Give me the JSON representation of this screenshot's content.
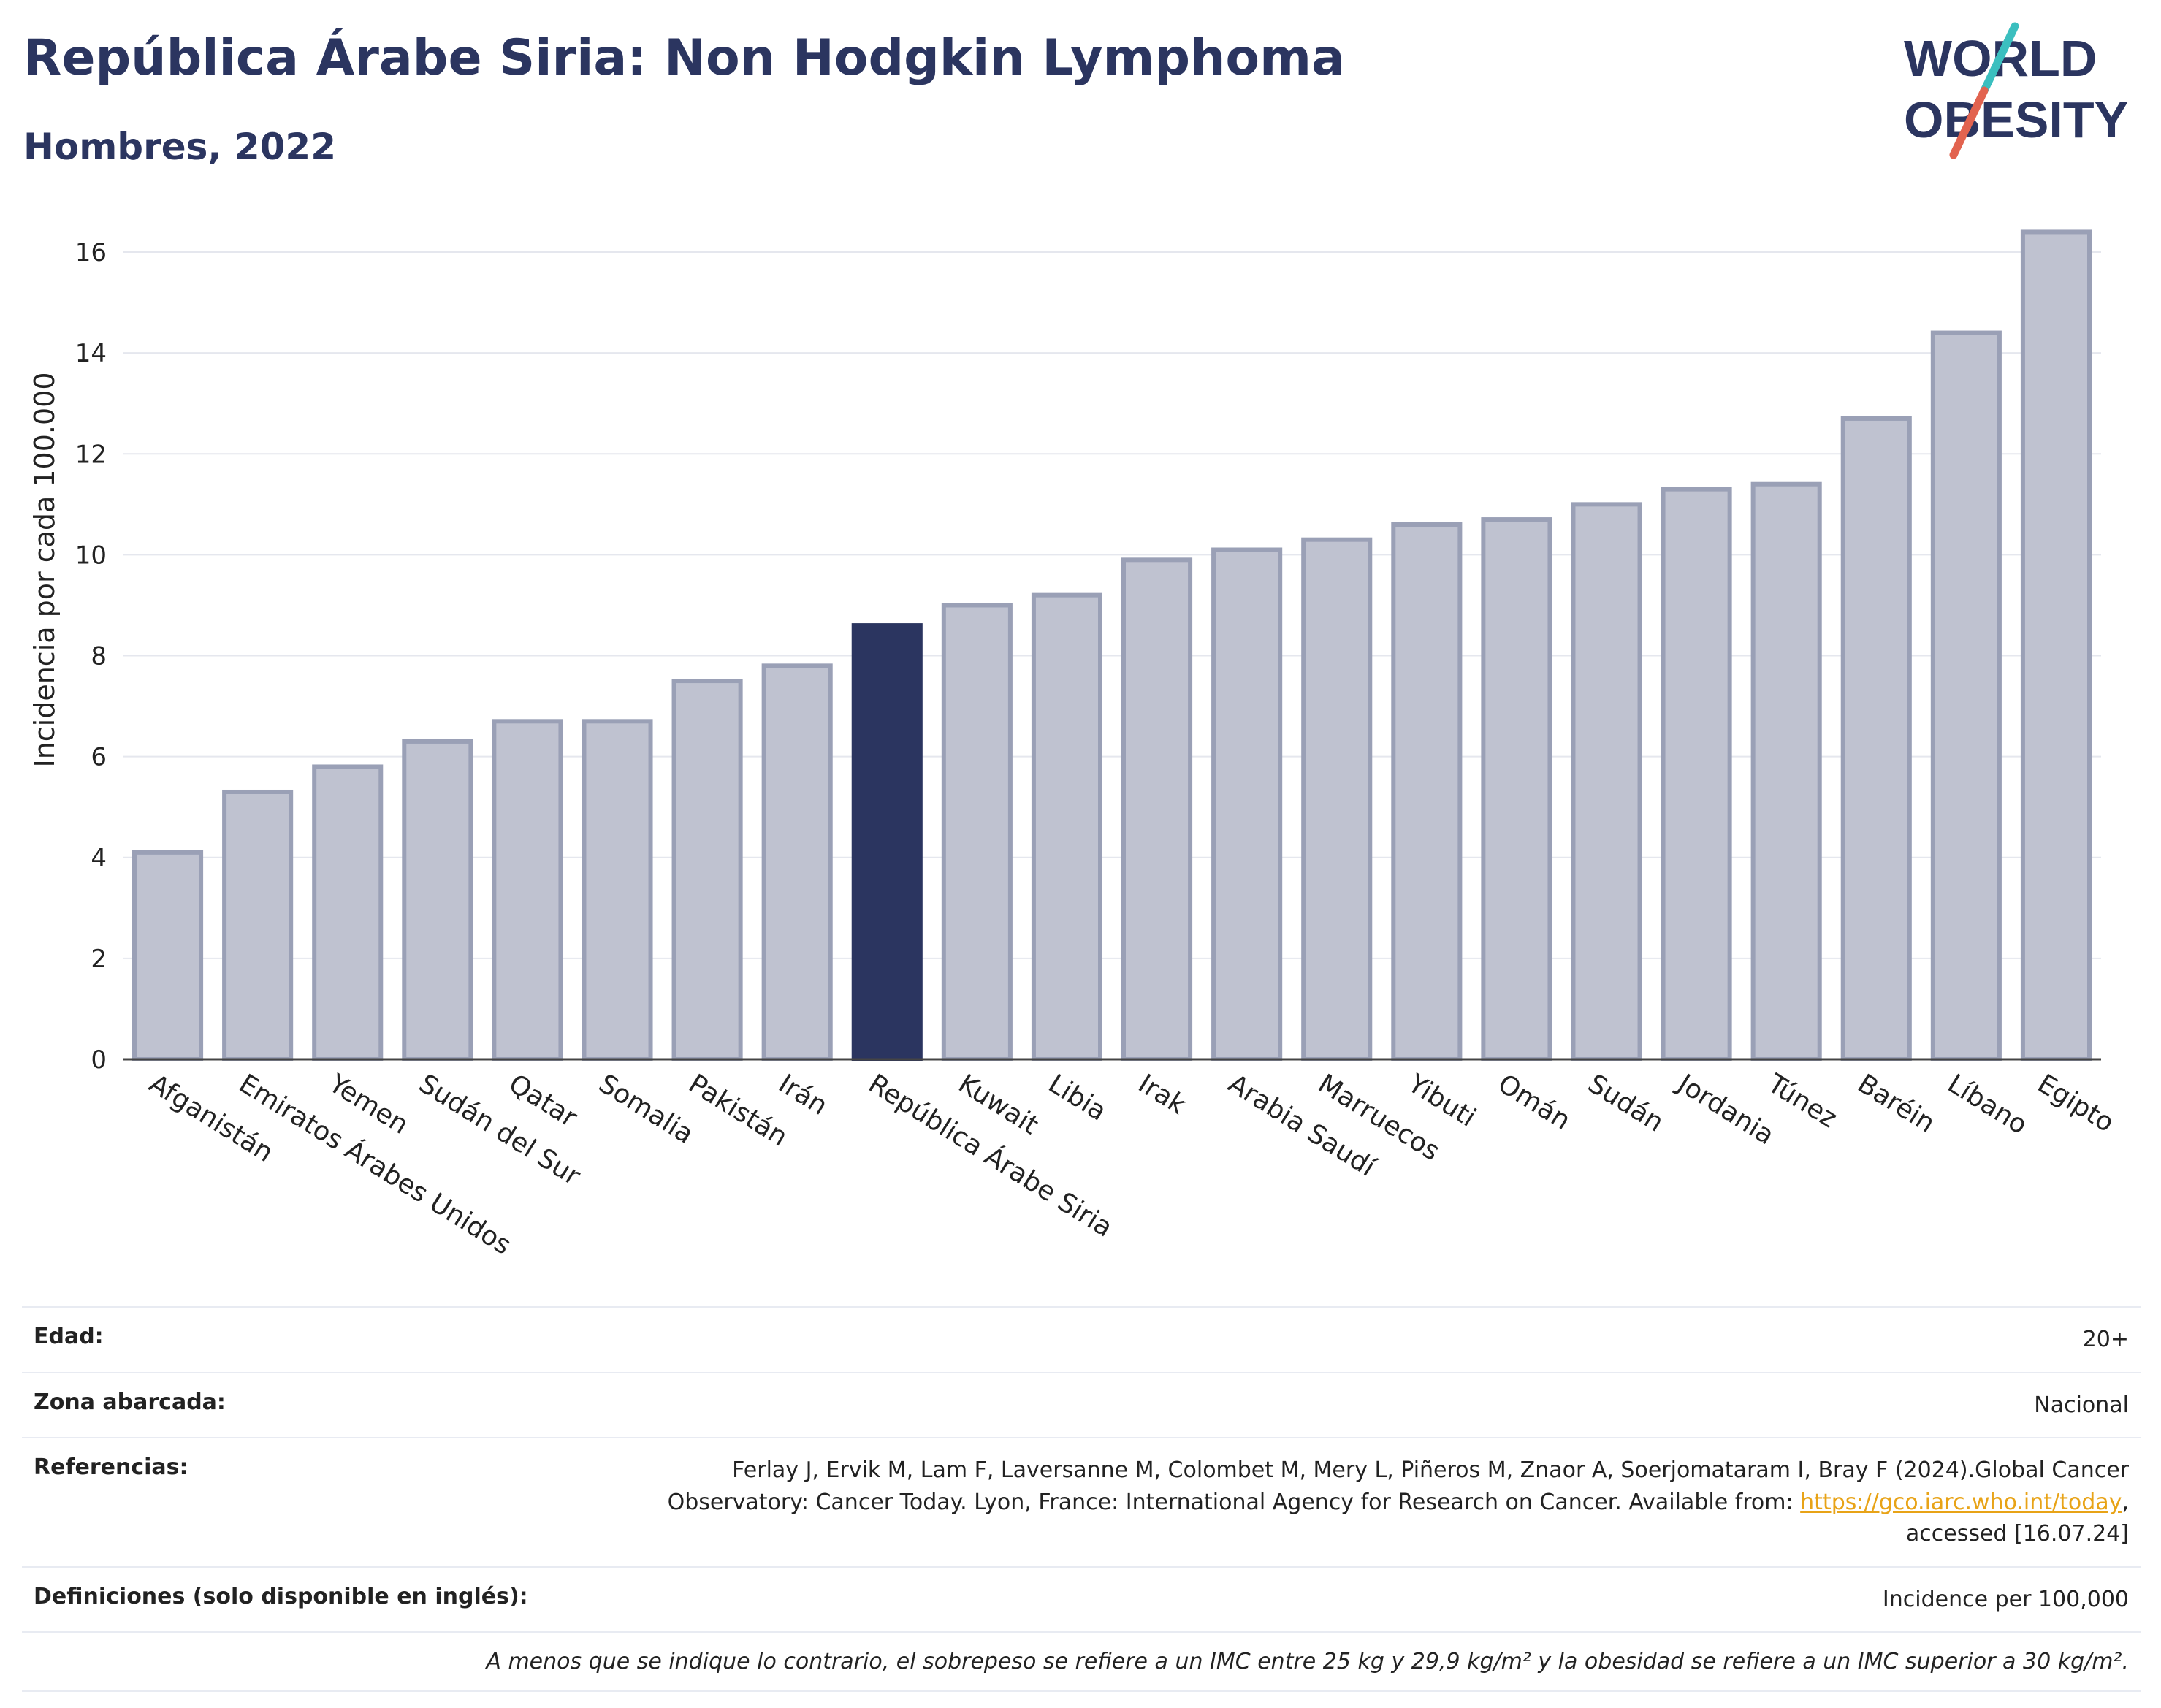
{
  "header": {
    "title": "República Árabe Siria: Non Hodgkin Lymphoma",
    "subtitle": "Hombres, 2022"
  },
  "logo": {
    "line1": "WORLD",
    "line2": "OBESITY",
    "accent_teal": "#3bbfbf",
    "accent_red": "#e2634f"
  },
  "colors": {
    "bar": "#bfc2d0",
    "bar_border": "#9aa0b6",
    "bar_highlight": "#2b3560",
    "axis": "#444444",
    "grid": "#e5e7ee",
    "title": "#2b3560"
  },
  "chart_data": {
    "type": "bar",
    "title": "República Árabe Siria: Non Hodgkin Lymphoma",
    "subtitle": "Hombres, 2022",
    "xlabel": "",
    "ylabel": "Incidencia por cada 100.000",
    "ylim": [
      0,
      17
    ],
    "yticks": [
      0,
      2,
      4,
      6,
      8,
      10,
      12,
      14,
      16
    ],
    "grid": true,
    "highlight": "República Árabe Siria",
    "categories": [
      "Afganistán",
      "Emiratos Árabes Unidos",
      "Yemen",
      "Sudán del Sur",
      "Qatar",
      "Somalia",
      "Pakistán",
      "Irán",
      "República Árabe Siria",
      "Kuwait",
      "Libia",
      "Irak",
      "Arabia Saudí",
      "Marruecos",
      "Yibuti",
      "Omán",
      "Sudán",
      "Jordania",
      "Túnez",
      "Baréin",
      "Líbano",
      "Egipto"
    ],
    "values": [
      4.1,
      5.3,
      5.8,
      6.3,
      6.7,
      6.7,
      7.5,
      7.8,
      8.6,
      9.0,
      9.2,
      9.9,
      10.1,
      10.3,
      10.6,
      10.7,
      11.0,
      11.3,
      11.4,
      12.7,
      14.4,
      16.4
    ]
  },
  "meta": {
    "edad_label": "Edad:",
    "edad_value": "20+",
    "zona_label": "Zona abarcada:",
    "zona_value": "Nacional",
    "ref_label": "Referencias:",
    "ref_line1": "Ferlay J, Ervik M, Lam F, Laversanne M, Colombet M, Mery L, Piñeros M, Znaor A, Soerjomataram I, Bray F (2024).Global Cancer",
    "ref_line2": "Observatory: Cancer Today. Lyon, France: International Agency for Research on Cancer. Available from:",
    "ref_link": "https://gco.iarc.who.int/today",
    "ref_line3": "accessed [16.07.24]",
    "def_label": "Definiciones (solo disponible en inglés):",
    "def_value": "Incidence per 100,000",
    "note": "A menos que se indique lo contrario, el sobrepeso se refiere a un IMC entre 25 kg y 29,9 kg/m² y la obesidad se refiere a un IMC superior a 30 kg/m²."
  }
}
